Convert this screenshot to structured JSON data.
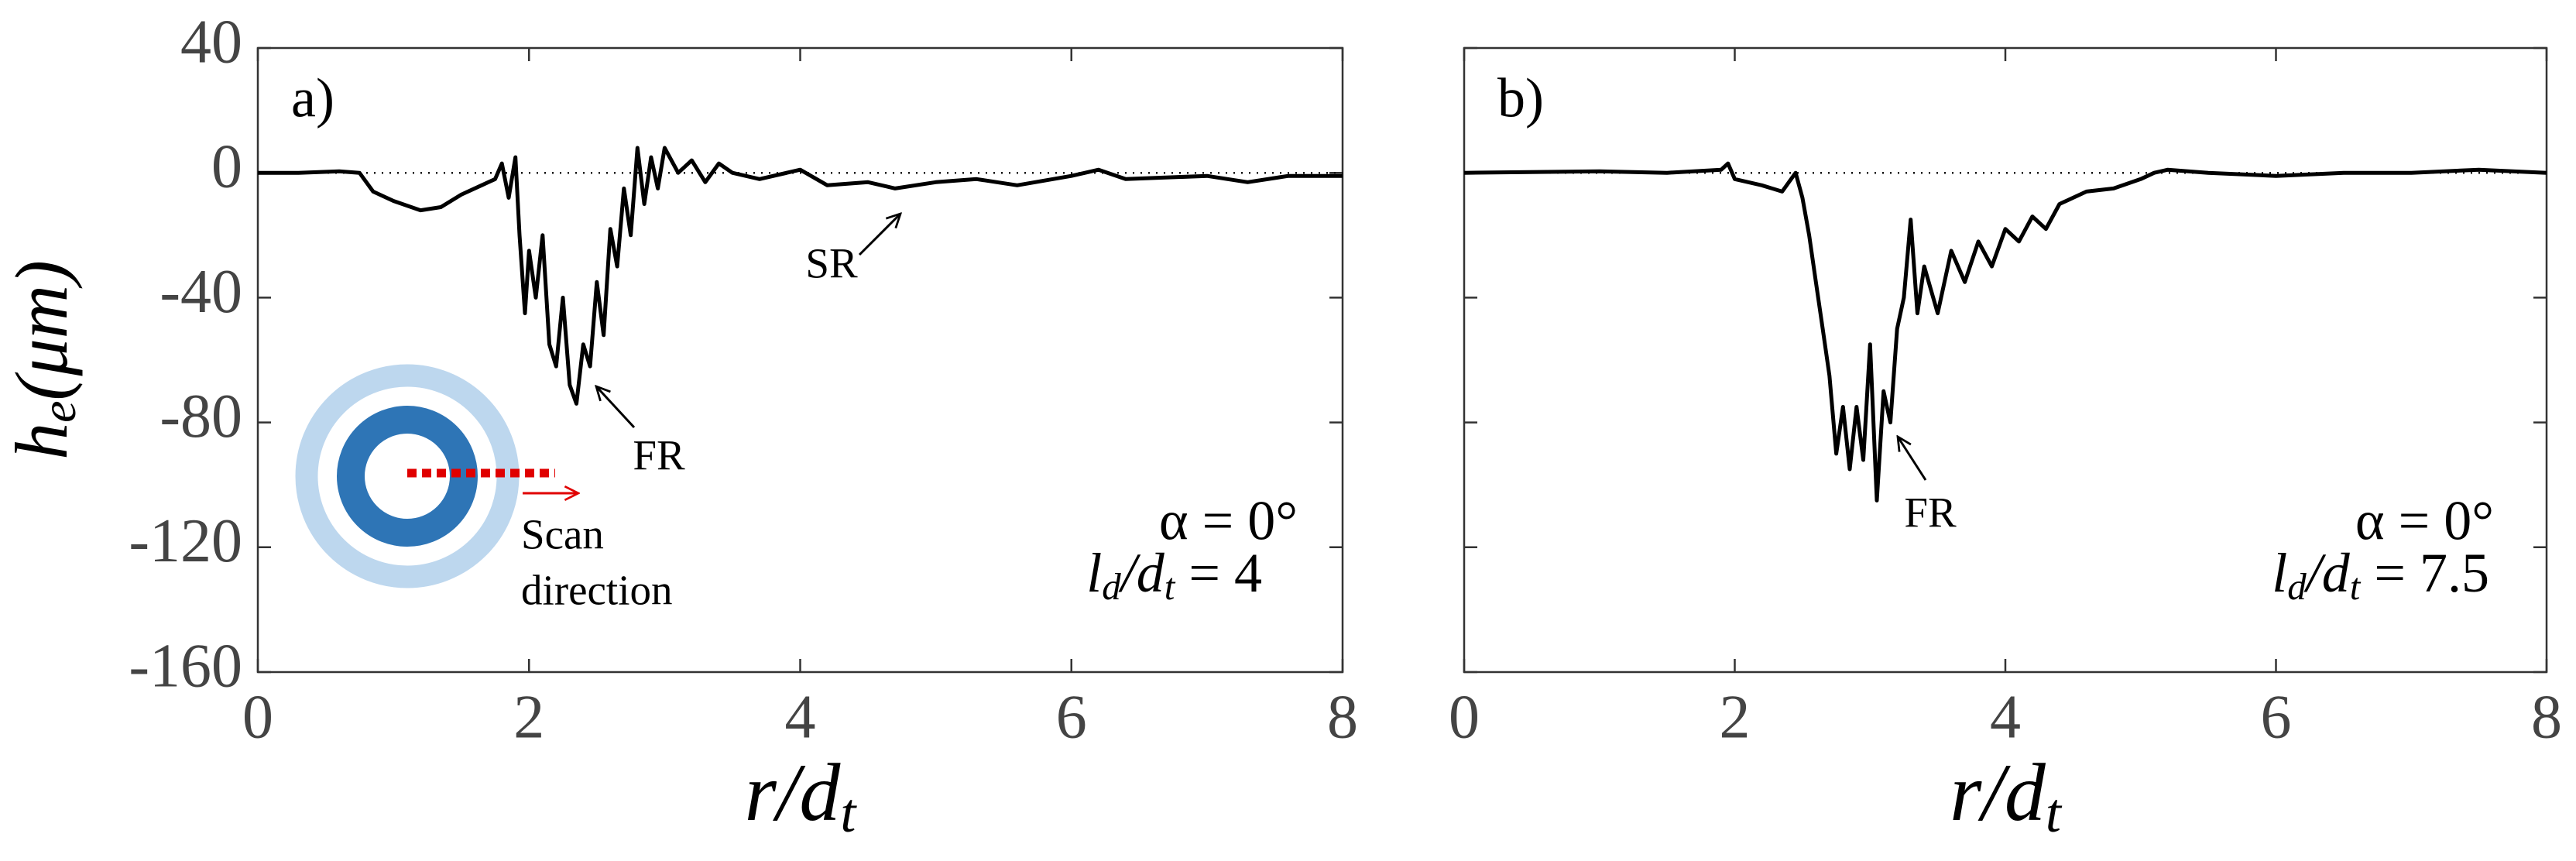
{
  "chart_data": [
    {
      "type": "line",
      "panel_label": "a)",
      "x": [
        0,
        0.3,
        0.6,
        0.75,
        0.85,
        1.0,
        1.2,
        1.35,
        1.5,
        1.65,
        1.75,
        1.8,
        1.85,
        1.9,
        1.93,
        1.97,
        2.0,
        2.05,
        2.1,
        2.15,
        2.2,
        2.25,
        2.3,
        2.35,
        2.4,
        2.45,
        2.5,
        2.55,
        2.6,
        2.65,
        2.7,
        2.75,
        2.8,
        2.85,
        2.9,
        2.95,
        3.0,
        3.1,
        3.2,
        3.3,
        3.4,
        3.5,
        3.7,
        4.0,
        4.2,
        4.5,
        4.7,
        5.0,
        5.3,
        5.6,
        6.0,
        6.2,
        6.4,
        7.0,
        7.3,
        7.6,
        8.0
      ],
      "series": [
        {
          "color": "#000000",
          "values": [
            0,
            0,
            0.5,
            0,
            -6,
            -9,
            -12,
            -11,
            -7,
            -4,
            -2,
            3,
            -8,
            5,
            -20,
            -45,
            -25,
            -40,
            -20,
            -55,
            -62,
            -40,
            -68,
            -74,
            -55,
            -62,
            -35,
            -52,
            -18,
            -30,
            -5,
            -20,
            8,
            -10,
            5,
            -5,
            8,
            0,
            4,
            -3,
            3,
            0,
            -2,
            1,
            -4,
            -3,
            -5,
            -3,
            -2,
            -4,
            -1,
            1,
            -2,
            -1,
            -3,
            -1,
            -1
          ]
        }
      ],
      "xlim": [
        0,
        8
      ],
      "ylim": [
        -160,
        40
      ],
      "xticks": [
        0,
        2,
        4,
        6,
        8
      ],
      "yticks": [
        40,
        0,
        -40,
        -80,
        -120,
        -160
      ],
      "y_label": {
        "base": "h",
        "sub": "e",
        "rest": "(μm)"
      },
      "x_label": {
        "base": "r/d",
        "sub": "t"
      },
      "annotations": [
        {
          "text": "SR"
        },
        {
          "text": "FR"
        },
        {
          "text": "α = 0°"
        },
        {
          "parts": [
            "l",
            "d",
            "/d",
            "t",
            " = 4"
          ]
        },
        {
          "text": "Scan"
        },
        {
          "text": "direction"
        }
      ]
    },
    {
      "type": "line",
      "panel_label": "b)",
      "x": [
        0,
        1.0,
        1.5,
        1.9,
        1.95,
        2.0,
        2.2,
        2.35,
        2.45,
        2.5,
        2.55,
        2.6,
        2.65,
        2.7,
        2.75,
        2.8,
        2.85,
        2.9,
        2.95,
        3.0,
        3.05,
        3.1,
        3.15,
        3.2,
        3.25,
        3.3,
        3.35,
        3.4,
        3.5,
        3.6,
        3.7,
        3.8,
        3.9,
        4.0,
        4.1,
        4.2,
        4.3,
        4.4,
        4.6,
        4.8,
        5.0,
        5.1,
        5.2,
        5.5,
        6.0,
        6.5,
        7.0,
        7.5,
        8.0
      ],
      "series": [
        {
          "color": "#000000",
          "values": [
            0,
            0.5,
            0,
            1,
            3,
            -2,
            -4,
            -6,
            0,
            -8,
            -20,
            -35,
            -50,
            -65,
            -90,
            -75,
            -95,
            -75,
            -92,
            -55,
            -105,
            -70,
            -80,
            -50,
            -40,
            -15,
            -45,
            -30,
            -45,
            -25,
            -35,
            -22,
            -30,
            -18,
            -22,
            -14,
            -18,
            -10,
            -6,
            -5,
            -2,
            0,
            1,
            0,
            -1,
            0,
            0,
            1,
            0
          ]
        }
      ],
      "xlim": [
        0,
        8
      ],
      "ylim": [
        -160,
        40
      ],
      "xticks": [
        0,
        2,
        4,
        6,
        8
      ],
      "x_label": {
        "base": "r/d",
        "sub": "t"
      },
      "annotations": [
        {
          "text": "FR"
        },
        {
          "text": "α = 0°"
        },
        {
          "parts": [
            "l",
            "d",
            "/d",
            "t",
            " = 7.5"
          ]
        }
      ]
    }
  ]
}
